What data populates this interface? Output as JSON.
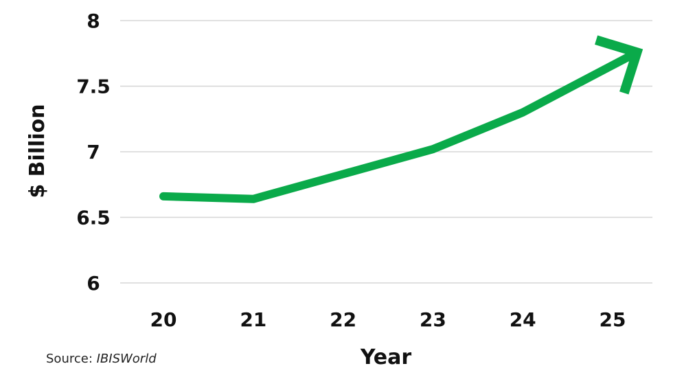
{
  "chart_data": {
    "type": "line",
    "title": "",
    "xlabel": "Year",
    "ylabel": "$ Billion",
    "x": [
      "20",
      "21",
      "22",
      "23",
      "24",
      "25"
    ],
    "series": [
      {
        "values": [
          6.66,
          6.64,
          6.83,
          7.02,
          7.3,
          7.66
        ]
      }
    ],
    "ylim": [
      6,
      8
    ],
    "yticks": [
      "6",
      "6.5",
      "7",
      "7.5",
      "8"
    ],
    "grid": true,
    "line_color": "#0aaa4a",
    "end_marker": "arrow"
  },
  "source": {
    "label": "Source: ",
    "name": "IBISWorld"
  }
}
